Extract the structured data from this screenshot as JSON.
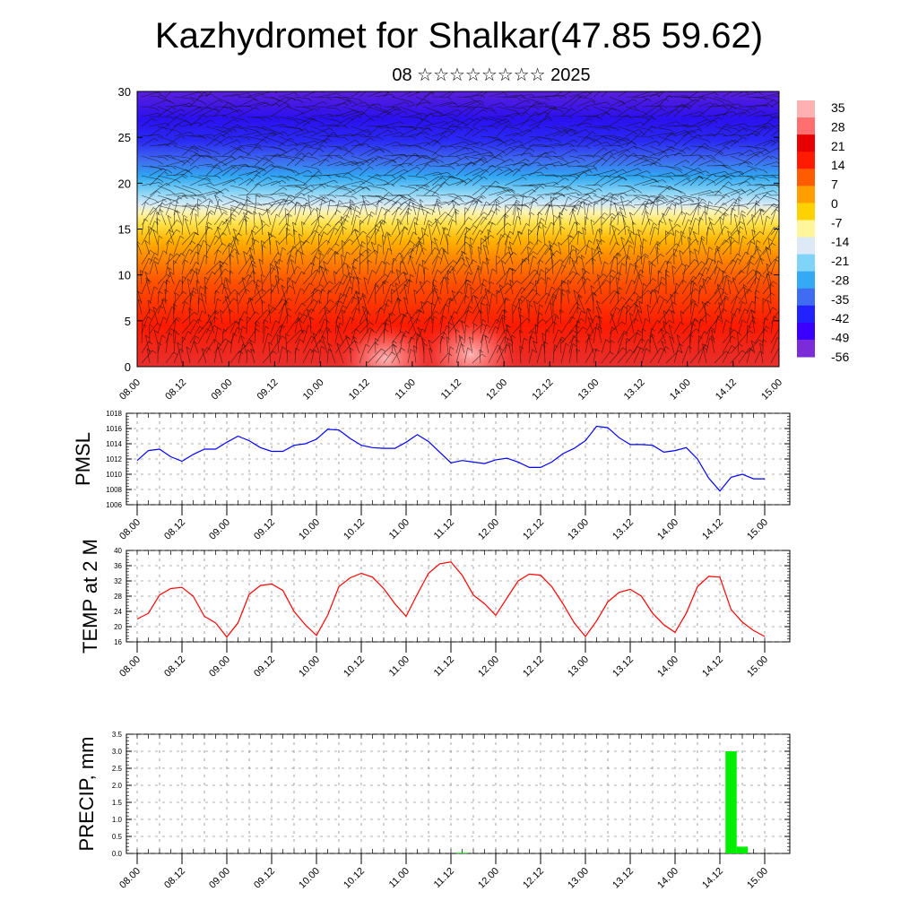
{
  "header": {
    "title": "Kazhydromet for Shalkar(47.85 59.62)",
    "subtitle": "08 ☆☆☆☆☆☆☆☆ 2025"
  },
  "colors": {
    "pmsl_line": "#0000ff",
    "temp_line": "#ff0000",
    "precip_bar": "#00ee00",
    "colorbar": [
      "#7b2bd8",
      "#3a00ff",
      "#2222ff",
      "#3f6cf0",
      "#36a9f5",
      "#7fd4f7",
      "#dde9f7",
      "#fff59a",
      "#ffd100",
      "#ff9e00",
      "#ff5c00",
      "#ff1a00",
      "#e60000",
      "#ff6f6f",
      "#ffb0b0"
    ]
  },
  "chart_data": [
    {
      "type": "heatmap",
      "title": "",
      "ylim": [
        0,
        30
      ],
      "y_ticks": [
        "0",
        "5",
        "10",
        "15",
        "20",
        "25",
        "30"
      ],
      "x_ticks": [
        "08.00",
        "08.12",
        "09.00",
        "09.12",
        "10.00",
        "10.12",
        "11.00",
        "11.12",
        "12.00",
        "12.12",
        "13.00",
        "13.12",
        "14.00",
        "14.12",
        "15.00"
      ],
      "colorbar_labels": [
        "35",
        "28",
        "21",
        "14",
        "7",
        "0",
        "-7",
        "-14",
        "-21",
        "-28",
        "-35",
        "-42",
        "-49",
        "-56"
      ],
      "overlay": "wind barbs"
    },
    {
      "type": "line",
      "ylabel": "PMSL",
      "ylim": [
        1006,
        1018
      ],
      "y_ticks": [
        "1006",
        "1008",
        "1010",
        "1012",
        "1014",
        "1016",
        "1018"
      ],
      "x_ticks": [
        "08.00",
        "08.12",
        "09.00",
        "09.12",
        "10.00",
        "10.12",
        "11.00",
        "11.12",
        "12.00",
        "12.12",
        "13.00",
        "13.12",
        "14.00",
        "14.12",
        "15.00"
      ],
      "series": [
        {
          "values": [
            1011.8,
            1013.1,
            1013.3,
            1012.3,
            1011.7,
            1012.6,
            1013.3,
            1013.3,
            1014.2,
            1015.0,
            1014.4,
            1013.5,
            1013.0,
            1013.0,
            1013.8,
            1014.0,
            1014.6,
            1015.9,
            1015.8,
            1014.7,
            1013.8,
            1013.5,
            1013.4,
            1013.4,
            1014.2,
            1015.2,
            1014.3,
            1012.9,
            1011.5,
            1011.8,
            1011.6,
            1011.4,
            1011.9,
            1012.1,
            1011.6,
            1010.9,
            1010.9,
            1011.6,
            1012.7,
            1013.4,
            1014.4,
            1016.3,
            1016.1,
            1014.8,
            1013.9,
            1013.9,
            1013.8,
            1012.9,
            1013.1,
            1013.5,
            1012.0,
            1009.5,
            1007.8,
            1009.6,
            1010.0,
            1009.4,
            1009.4
          ]
        }
      ]
    },
    {
      "type": "line",
      "ylabel": "TEMP at 2 M",
      "ylim": [
        16,
        40
      ],
      "y_ticks": [
        "16",
        "20",
        "24",
        "28",
        "32",
        "36",
        "40"
      ],
      "x_ticks": [
        "08.00",
        "08.12",
        "09.00",
        "09.12",
        "10.00",
        "10.12",
        "11.00",
        "11.12",
        "12.00",
        "12.12",
        "13.00",
        "13.12",
        "14.00",
        "14.12",
        "15.00"
      ],
      "series": [
        {
          "values": [
            22.0,
            23.5,
            28.3,
            30.0,
            30.3,
            28.0,
            22.7,
            21.0,
            17.3,
            21.0,
            28.5,
            30.8,
            31.2,
            29.5,
            24.0,
            20.5,
            17.7,
            23.0,
            30.5,
            32.8,
            34.0,
            33.0,
            30.0,
            26.0,
            22.7,
            28.5,
            34.0,
            36.5,
            37.0,
            33.5,
            28.3,
            26.0,
            23.0,
            27.5,
            32.0,
            33.8,
            33.5,
            30.5,
            26.0,
            21.0,
            17.4,
            21.5,
            26.5,
            29.0,
            29.8,
            28.0,
            23.5,
            20.5,
            18.5,
            23.5,
            30.5,
            33.2,
            33.0,
            24.5,
            21.2,
            19.0,
            17.4
          ]
        }
      ]
    },
    {
      "type": "bar",
      "ylabel": "PRECIP, mm",
      "ylim": [
        0,
        3.5
      ],
      "y_ticks": [
        "0.0",
        "0.5",
        "1.0",
        "1.5",
        "2.0",
        "2.5",
        "3.0",
        "3.5"
      ],
      "x_ticks": [
        "08.00",
        "08.12",
        "09.00",
        "09.12",
        "10.00",
        "10.12",
        "11.00",
        "11.12",
        "12.00",
        "12.12",
        "13.00",
        "13.12",
        "14.00",
        "14.12",
        "15.00"
      ],
      "bars": [
        {
          "x": 29,
          "value": 0.02
        },
        {
          "x": 53,
          "value": 3.0
        },
        {
          "x": 54,
          "value": 0.2
        }
      ]
    }
  ]
}
